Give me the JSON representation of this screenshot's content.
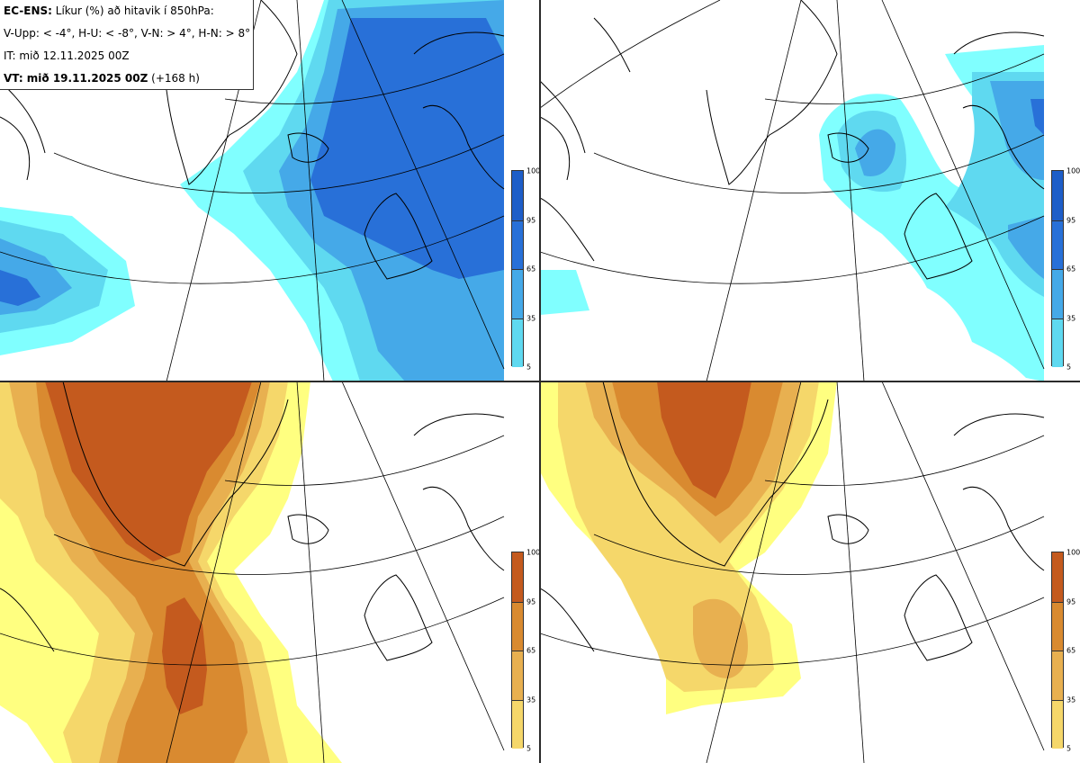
{
  "header": {
    "model_label": "EC-ENS:",
    "title_rest": "Líkur (%) að hitavik í 850hPa:",
    "thresholds": "V-Upp: < -4°, H-U: < -8°, V-N: > 4°, H-N: > 8°",
    "init_time": "IT: mið 12.11.2025 00Z",
    "valid_label": "VT: mið 19.11.2025 00Z",
    "lead_time": "(+168 h)"
  },
  "colorbar_ticks": [
    "100",
    "95",
    "65",
    "35",
    "5"
  ],
  "palettes": {
    "cold": [
      "#80ffff",
      "#5fd9f0",
      "#45a9e8",
      "#2870d8",
      "#1e5ec8"
    ],
    "warm": [
      "#ffff80",
      "#f5d76a",
      "#e8b050",
      "#d98a30",
      "#c45a1e"
    ]
  },
  "panels": [
    {
      "id": "cold-4",
      "palette": "cold",
      "probability_max": 100
    },
    {
      "id": "cold-8",
      "palette": "cold",
      "probability_max": 95
    },
    {
      "id": "warm-4",
      "palette": "warm",
      "probability_max": 100
    },
    {
      "id": "warm-8",
      "palette": "warm",
      "probability_max": 100
    }
  ]
}
